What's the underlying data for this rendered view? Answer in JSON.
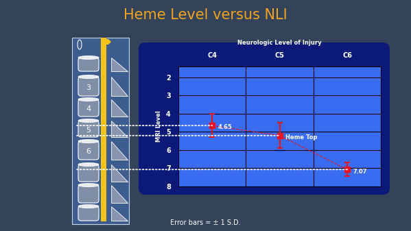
{
  "slide": {
    "title": "Heme Level versus NLI",
    "footer": "Error bars = ± 1 S.D.",
    "diagram_labels": [
      "3",
      "4",
      "5",
      "6"
    ]
  },
  "chart_data": {
    "type": "line",
    "x_label": "Neurologic Level of Injury",
    "y_label": "MRI Level",
    "categories": [
      "C4",
      "C5",
      "C6"
    ],
    "values": [
      4.65,
      5.2,
      7.07
    ],
    "errors": [
      0.65,
      0.7,
      0.38
    ],
    "value_labels": [
      "4.65",
      null,
      "7.07"
    ],
    "data_labels": true,
    "annotations": [
      {
        "text": "Heme Top",
        "category": "C5"
      }
    ],
    "ylim": [
      8,
      1.4
    ],
    "yticks": [
      2,
      3,
      4,
      5,
      6,
      7,
      8
    ],
    "grid": true,
    "color": "#e8131b",
    "marker": "square",
    "line_style": "dashed"
  }
}
